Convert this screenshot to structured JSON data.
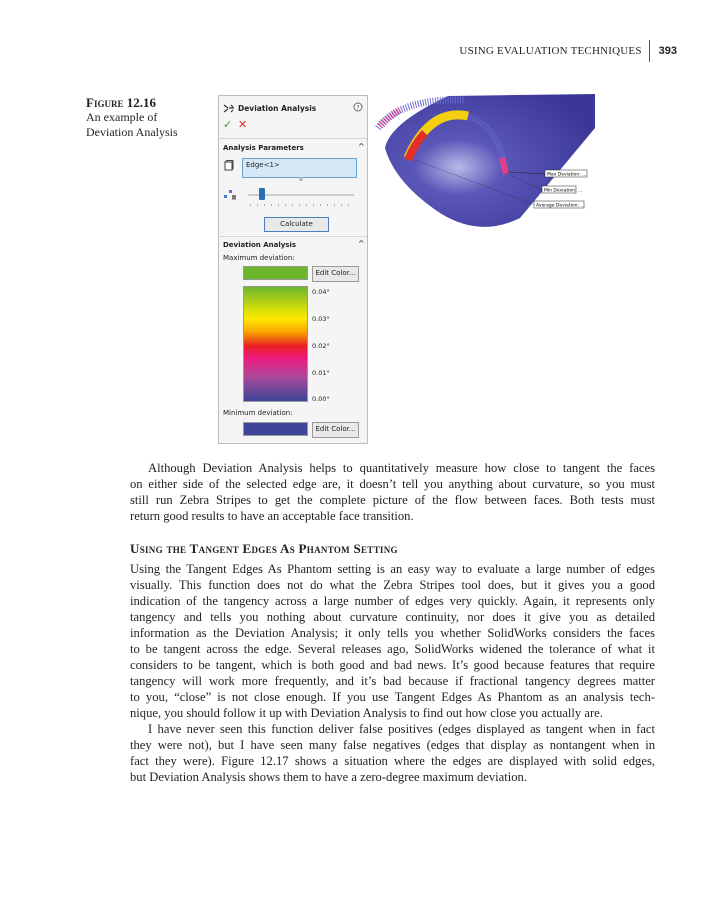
{
  "header": {
    "running_title": "USING EVALUATION TECHNIQUES",
    "page_number": "393"
  },
  "figure": {
    "label": "Figure 12.16",
    "caption": "An example of Deviation Analysis",
    "caption_lines": [
      "An example of",
      "Deviation Analysis"
    ],
    "panel": {
      "title": "Deviation Analysis",
      "ok_icon": "check-icon",
      "cancel_icon": "x-icon",
      "help_icon": "help-circle-icon",
      "section1": "Analysis Parameters",
      "edge_value": "Edge<1>",
      "calculate": "Calculate",
      "section2": "Deviation Analysis",
      "max_label": "Maximum deviation:",
      "min_label": "Minimum deviation:",
      "edit_color": "Edit Color...",
      "max_color": "#6cb52d",
      "min_color": "#3d4698",
      "scale": [
        "0.04°",
        "0.03°",
        "0.02°",
        "0.01°",
        "0.00°"
      ]
    },
    "callouts": [
      "Max Deviation: ...",
      "Min Deviation: ...",
      "Average Deviation: ..."
    ]
  },
  "body": {
    "p1": [
      "Although Deviation Analysis helps to quantitatively measure how close to tangent the faces",
      "on either side of the selected edge are, it doesn’t tell you anything about curvature, so you must",
      "still run Zebra Stripes to get the complete picture of the flow between faces. Both tests must",
      "return good results to have an acceptable face transition."
    ],
    "heading": "Using the Tangent Edges As Phantom Setting",
    "p2": [
      "Using the Tangent Edges As Phantom setting is an easy way to evaluate a large number of edges",
      "visually. This function does not do what the Zebra Stripes tool does, but it gives you a good",
      "indication of the tangency across a large number of edges very quickly. Again, it represents only",
      "tangency and tells you nothing about curvature continuity, nor does it give you as detailed",
      "information as the Deviation Analysis; it only tells you whether SolidWorks considers the faces",
      "to be tangent across the edge. Several releases ago, SolidWorks widened the tolerance of what it",
      "considers to be tangent, which is both good and bad news. It’s good because features that require",
      "tangency will work more frequently, and it’s bad because if fractional tangency degrees matter",
      "to you, “close” is not close enough. If you use Tangent Edges As Phantom as an analysis tech-",
      "nique, you should follow it up with Deviation Analysis to find out how close you actually are."
    ],
    "p3": [
      "I have never seen this function deliver false positives (edges displayed as tangent when in fact",
      "they were not), but I have seen many false negatives (edges that display as nontangent when in",
      "fact they were). Figure 12.17 shows a situation where the edges are displayed with solid edges,",
      "but Deviation Analysis shows them to have a zero-degree maximum deviation."
    ]
  }
}
